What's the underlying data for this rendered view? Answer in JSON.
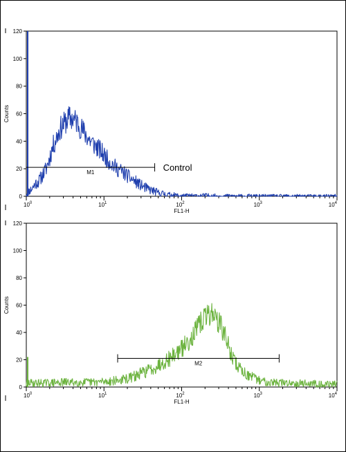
{
  "chart_data": [
    {
      "type": "line",
      "xlabel": "FL1-H",
      "ylabel": "Counts",
      "x_scale": "log",
      "xlim": [
        1,
        10000
      ],
      "ylim": [
        0,
        120
      ],
      "grid": false,
      "x_ticks": [
        {
          "value": 1,
          "base": "10",
          "exp": "0"
        },
        {
          "value": 10,
          "base": "10",
          "exp": "1"
        },
        {
          "value": 100,
          "base": "10",
          "exp": "2"
        },
        {
          "value": 1000,
          "base": "10",
          "exp": "3"
        },
        {
          "value": 10000,
          "base": "10",
          "exp": "4"
        }
      ],
      "y_ticks": [
        {
          "value": 0,
          "label": "0"
        },
        {
          "value": 20,
          "label": "20"
        },
        {
          "value": 40,
          "label": "40"
        },
        {
          "value": 60,
          "label": "60"
        },
        {
          "value": 80,
          "label": "80"
        },
        {
          "value": 100,
          "label": "100"
        },
        {
          "value": 120,
          "label": "120"
        }
      ],
      "color": "#1f3fae",
      "series": [
        {
          "x": [
            1,
            1.05,
            1.1,
            1.2,
            1.3,
            1.45,
            1.6,
            1.8,
            2.0,
            2.2,
            2.5,
            2.8,
            3.0,
            3.3,
            3.6,
            4.0,
            4.5,
            5.0,
            5.6,
            6.3,
            7.0,
            8.0,
            9.0,
            10,
            11,
            12.5,
            14,
            16,
            18,
            20,
            22,
            25,
            28,
            32,
            36,
            40,
            45,
            50,
            56,
            63,
            70,
            80,
            90,
            100,
            150,
            200,
            300,
            1000,
            10000
          ],
          "y": [
            2,
            3,
            4,
            6,
            9,
            11,
            15,
            20,
            28,
            36,
            44,
            50,
            52,
            55,
            57,
            56,
            54,
            50,
            46,
            42,
            39,
            36,
            33,
            30,
            27,
            24,
            21,
            19,
            17,
            15,
            13,
            11,
            9,
            7,
            5.5,
            4.5,
            3.5,
            2.5,
            2,
            1.5,
            1,
            0.8,
            0.5,
            0.4,
            0.3,
            0.5,
            0.2,
            0.1,
            0.1
          ]
        }
      ],
      "gate": {
        "label": "M1",
        "x_start": 1,
        "x_end": 45,
        "y": 21
      },
      "annotation": "Control"
    },
    {
      "type": "line",
      "xlabel": "FL1-H",
      "ylabel": "Counts",
      "x_scale": "log",
      "xlim": [
        1,
        10000
      ],
      "ylim": [
        0,
        120
      ],
      "grid": false,
      "x_ticks": [
        {
          "value": 1,
          "base": "10",
          "exp": "0"
        },
        {
          "value": 10,
          "base": "10",
          "exp": "1"
        },
        {
          "value": 100,
          "base": "10",
          "exp": "2"
        },
        {
          "value": 1000,
          "base": "10",
          "exp": "3"
        },
        {
          "value": 10000,
          "base": "10",
          "exp": "4"
        }
      ],
      "y_ticks": [
        {
          "value": 0,
          "label": "0"
        },
        {
          "value": 20,
          "label": "20"
        },
        {
          "value": 40,
          "label": "40"
        },
        {
          "value": 60,
          "label": "60"
        },
        {
          "value": 80,
          "label": "80"
        },
        {
          "value": 100,
          "label": "100"
        },
        {
          "value": 120,
          "label": "120"
        }
      ],
      "color": "#6cb33f",
      "series": [
        {
          "x": [
            1,
            1.5,
            2,
            3,
            4,
            5,
            7,
            10,
            13,
            16,
            20,
            25,
            30,
            40,
            50,
            60,
            70,
            80,
            100,
            120,
            140,
            160,
            180,
            200,
            220,
            250,
            280,
            320,
            360,
            400,
            450,
            500,
            560,
            630,
            700,
            800,
            900,
            1000,
            1200,
            1500,
            2000,
            3000,
            5000,
            7000,
            10000
          ],
          "y": [
            3,
            3,
            3,
            3.5,
            3.5,
            3.5,
            3.5,
            4,
            4.5,
            5,
            6,
            8,
            10,
            13,
            16,
            19,
            21,
            24,
            28,
            33,
            38,
            43,
            48,
            51,
            53,
            55,
            50,
            45,
            38,
            30,
            22,
            17,
            14,
            11,
            9,
            7,
            6,
            5,
            4,
            3.5,
            3,
            3,
            2.5,
            2,
            2
          ]
        }
      ],
      "gate": {
        "label": "M2",
        "x_start": 15,
        "x_end": 1800,
        "y": 21
      }
    }
  ]
}
